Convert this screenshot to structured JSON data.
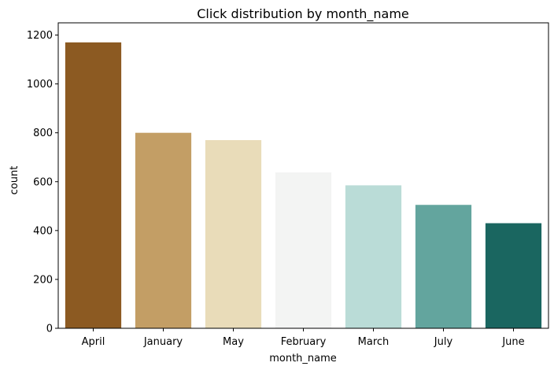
{
  "chart_data": {
    "type": "bar",
    "title": "Click distribution by month_name",
    "xlabel": "month_name",
    "ylabel": "count",
    "categories": [
      "April",
      "January",
      "May",
      "February",
      "March",
      "July",
      "June"
    ],
    "values": [
      1170,
      800,
      770,
      638,
      585,
      505,
      430
    ],
    "colors": [
      "#8c5a22",
      "#c39e65",
      "#e9dcb9",
      "#f3f4f3",
      "#badcd7",
      "#63a59e",
      "#1a6660"
    ],
    "ylim": [
      0,
      1250
    ],
    "yticks": [
      0,
      200,
      400,
      600,
      800,
      1000,
      1200
    ],
    "grid": false,
    "legend": "none"
  }
}
